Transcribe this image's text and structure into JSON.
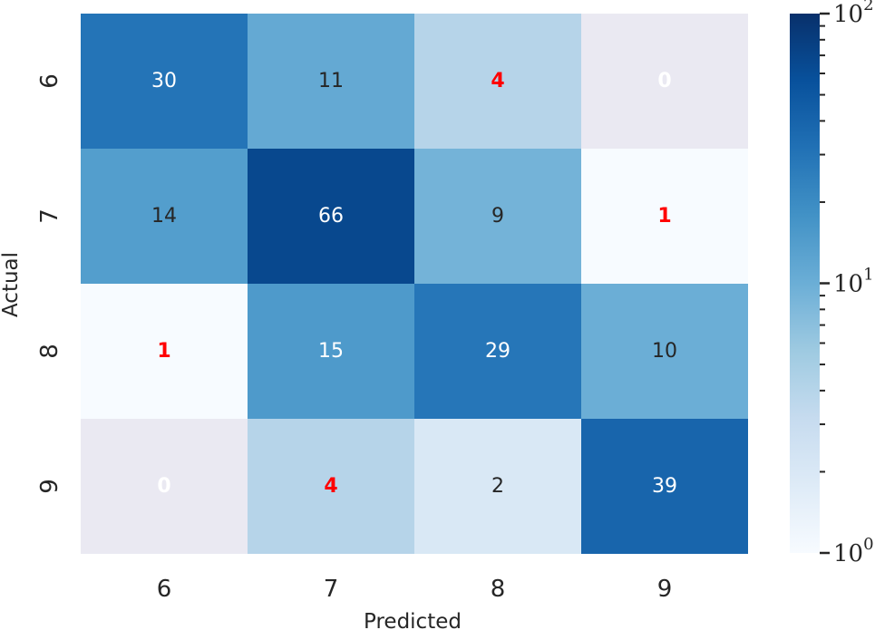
{
  "chart_data": {
    "type": "heatmap",
    "title": "",
    "xlabel": "Predicted",
    "ylabel": "Actual",
    "x_categories": [
      "6",
      "7",
      "8",
      "9"
    ],
    "y_categories": [
      "6",
      "7",
      "8",
      "9"
    ],
    "matrix": [
      [
        30,
        11,
        4,
        0
      ],
      [
        14,
        66,
        9,
        1
      ],
      [
        1,
        15,
        29,
        10
      ],
      [
        0,
        4,
        2,
        39
      ]
    ],
    "highlighted_cells": [
      [
        0,
        2
      ],
      [
        0,
        3
      ],
      [
        1,
        3
      ],
      [
        2,
        0
      ],
      [
        3,
        0
      ],
      [
        3,
        1
      ]
    ],
    "highlight_color": "#ff0000",
    "zero_cell_color": "#eae9f2",
    "colormap": "Blues",
    "color_scale": "log",
    "colorbar": {
      "range": [
        1,
        100
      ],
      "major_ticks": [
        {
          "value": 1,
          "base": "10",
          "exp": "0"
        },
        {
          "value": 10,
          "base": "10",
          "exp": "1"
        },
        {
          "value": 100,
          "base": "10",
          "exp": "2"
        }
      ]
    },
    "grid": false,
    "legend": "none"
  }
}
